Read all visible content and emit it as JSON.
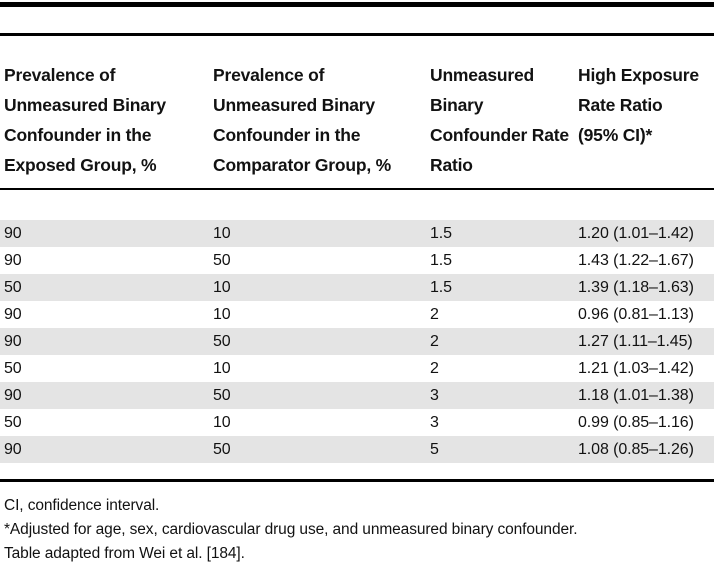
{
  "table": {
    "columns": [
      "Prevalence of Unmeasured Binary Confounder in the Exposed Group, %",
      "Prevalence of Unmeasured Binary Confounder in the Comparator Group, %",
      "Unmeasured Binary Confounder Rate Ratio",
      "High Exposure Rate Ratio (95% CI)*"
    ],
    "rows": [
      [
        "90",
        "10",
        "1.5",
        "1.20 (1.01–1.42)"
      ],
      [
        "90",
        "50",
        "1.5",
        "1.43 (1.22–1.67)"
      ],
      [
        "50",
        "10",
        "1.5",
        "1.39 (1.18–1.63)"
      ],
      [
        "90",
        "10",
        "2",
        "0.96 (0.81–1.13)"
      ],
      [
        "90",
        "50",
        "2",
        "1.27 (1.11–1.45)"
      ],
      [
        "50",
        "10",
        "2",
        "1.21 (1.03–1.42)"
      ],
      [
        "90",
        "50",
        "3",
        "1.18 (1.01–1.38)"
      ],
      [
        "50",
        "10",
        "3",
        "0.99 (0.85–1.16)"
      ],
      [
        "90",
        "50",
        "5",
        "1.08 (0.85–1.26)"
      ]
    ]
  },
  "footnotes": [
    "CI, confidence interval.",
    "*Adjusted for age, sex, cardiovascular drug use, and unmeasured binary confounder.",
    "Table adapted from Wei et al. [184]."
  ],
  "colors": {
    "row_shade": "#e4e4e4",
    "rule": "#000000",
    "text": "#121212",
    "background": "#ffffff"
  }
}
